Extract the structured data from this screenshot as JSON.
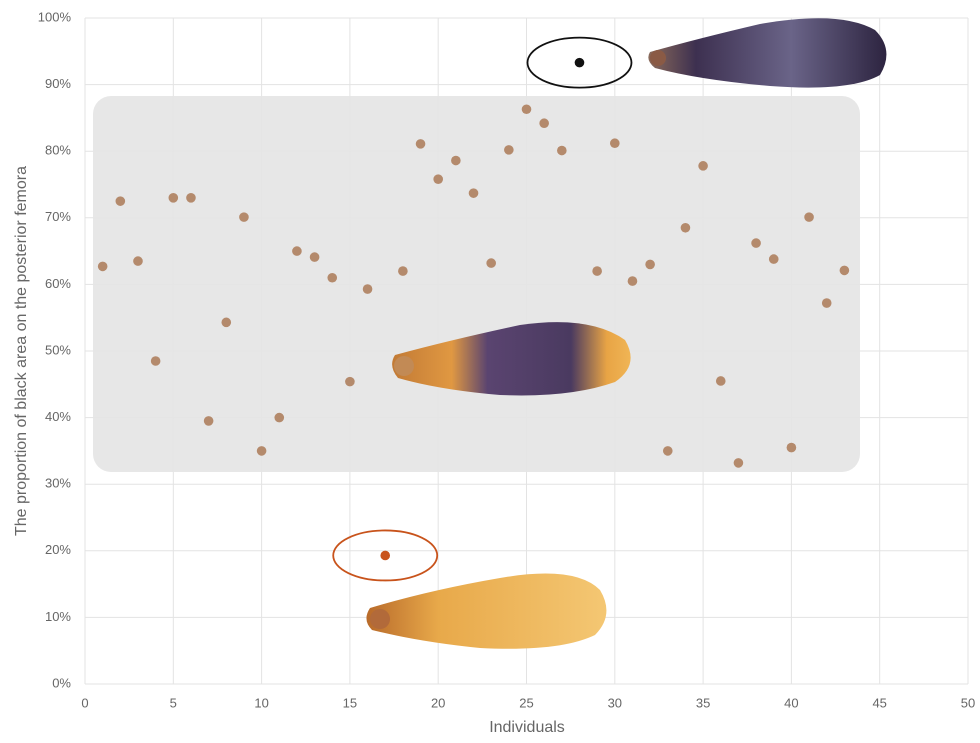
{
  "chart_data": {
    "type": "scatter",
    "x_label": "Individuals",
    "y_label": "The proportion of black area on the posterior femora",
    "xlim": [
      0,
      50
    ],
    "xticks": [
      0,
      5,
      10,
      15,
      20,
      25,
      30,
      35,
      40,
      45,
      50
    ],
    "ylim": [
      0,
      100
    ],
    "yticks": [
      {
        "value": 0,
        "label": "0%"
      },
      {
        "value": 10,
        "label": "10%"
      },
      {
        "value": 20,
        "label": "20%"
      },
      {
        "value": 30,
        "label": "30%"
      },
      {
        "value": 40,
        "label": "40%"
      },
      {
        "value": 50,
        "label": "50%"
      },
      {
        "value": 60,
        "label": "60%"
      },
      {
        "value": 70,
        "label": "70%"
      },
      {
        "value": 80,
        "label": "80%"
      },
      {
        "value": 90,
        "label": "90%"
      },
      {
        "value": 100,
        "label": "100%"
      }
    ],
    "grid": true,
    "series": [
      {
        "color": "#b48a6c",
        "x": [
          1,
          2,
          3,
          4,
          5,
          6,
          7,
          8,
          9,
          10,
          11,
          12,
          13,
          14,
          15,
          16,
          18,
          19,
          20,
          21,
          22,
          23,
          24,
          25,
          26,
          27,
          29,
          30,
          31,
          32,
          33,
          34,
          35,
          36,
          37,
          38,
          39,
          40,
          41,
          42,
          43
        ],
        "values": [
          62.7,
          72.5,
          63.5,
          48.5,
          73,
          73,
          39.5,
          54.3,
          70.1,
          35,
          40,
          65,
          64.1,
          61,
          45.4,
          59.3,
          62,
          81.1,
          75.8,
          78.6,
          73.7,
          63.2,
          80.2,
          86.3,
          84.2,
          80.1,
          62,
          81.2,
          60.5,
          63,
          35,
          68.5,
          77.8,
          45.5,
          33.2,
          66.2,
          63.8,
          35.5,
          70.1,
          57.2,
          62.1
        ]
      },
      {
        "color": "#c8531b",
        "x": [
          17
        ],
        "values": [
          19.3
        ],
        "ring": true
      },
      {
        "color": "#111111",
        "x": [
          28
        ],
        "values": [
          93.3
        ],
        "ring": true
      }
    ]
  }
}
